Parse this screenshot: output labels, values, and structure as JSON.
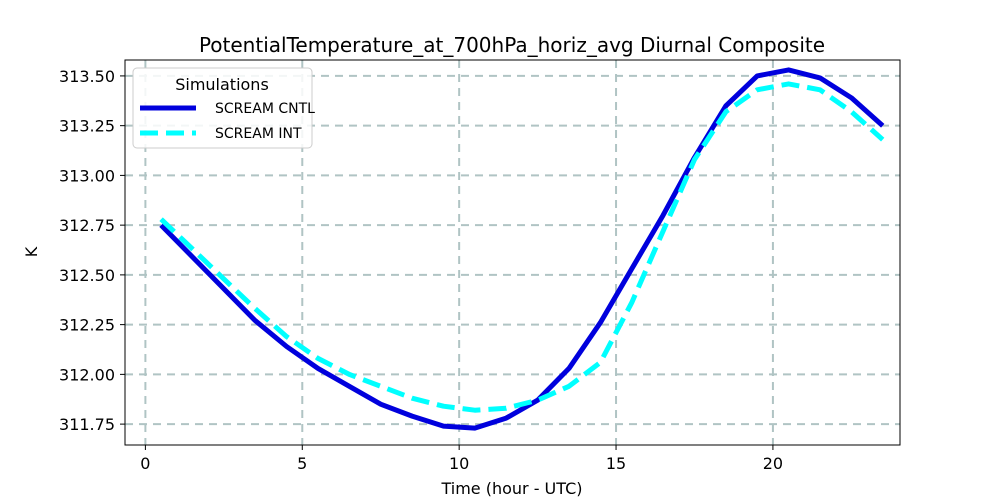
{
  "chart_data": {
    "type": "line",
    "title": "PotentialTemperature_at_700hPa_horiz_avg Diurnal Composite",
    "xlabel": "Time (hour - UTC)",
    "ylabel": "K",
    "xlim": [
      -0.65,
      24.05
    ],
    "ylim": [
      311.645,
      313.58
    ],
    "xticks": [
      0,
      5,
      10,
      15,
      20
    ],
    "xtick_labels": [
      "0",
      "5",
      "10",
      "15",
      "20"
    ],
    "yticks": [
      311.75,
      312.0,
      312.25,
      312.5,
      312.75,
      313.0,
      313.25,
      313.5
    ],
    "ytick_labels": [
      "311.75",
      "312.00",
      "312.25",
      "312.50",
      "312.75",
      "313.00",
      "313.25",
      "313.50"
    ],
    "grid": true,
    "legend": {
      "title": "Simulations",
      "location": "top-left"
    },
    "x": [
      0.5,
      1.5,
      2.5,
      3.5,
      4.5,
      5.5,
      6.5,
      7.5,
      8.5,
      9.5,
      10.5,
      11.5,
      12.5,
      13.5,
      14.5,
      15.5,
      16.5,
      17.5,
      18.5,
      19.5,
      20.5,
      21.5,
      22.5,
      23.5
    ],
    "series": [
      {
        "name": "SCREAM CNTL",
        "color": "#0000dd",
        "style": "solid",
        "values": [
          312.75,
          312.59,
          312.43,
          312.27,
          312.14,
          312.03,
          311.94,
          311.85,
          311.79,
          311.74,
          311.73,
          311.78,
          311.87,
          312.03,
          312.26,
          312.53,
          312.8,
          313.09,
          313.35,
          313.5,
          313.53,
          313.49,
          313.39,
          313.25
        ]
      },
      {
        "name": "SCREAM INT",
        "color": "#00ffff",
        "style": "dashed",
        "values": [
          312.78,
          312.63,
          312.48,
          312.33,
          312.19,
          312.08,
          312.0,
          311.94,
          311.88,
          311.84,
          311.82,
          311.83,
          311.87,
          311.94,
          312.06,
          312.36,
          312.72,
          313.08,
          313.32,
          313.43,
          313.46,
          313.43,
          313.32,
          313.18
        ]
      }
    ]
  }
}
